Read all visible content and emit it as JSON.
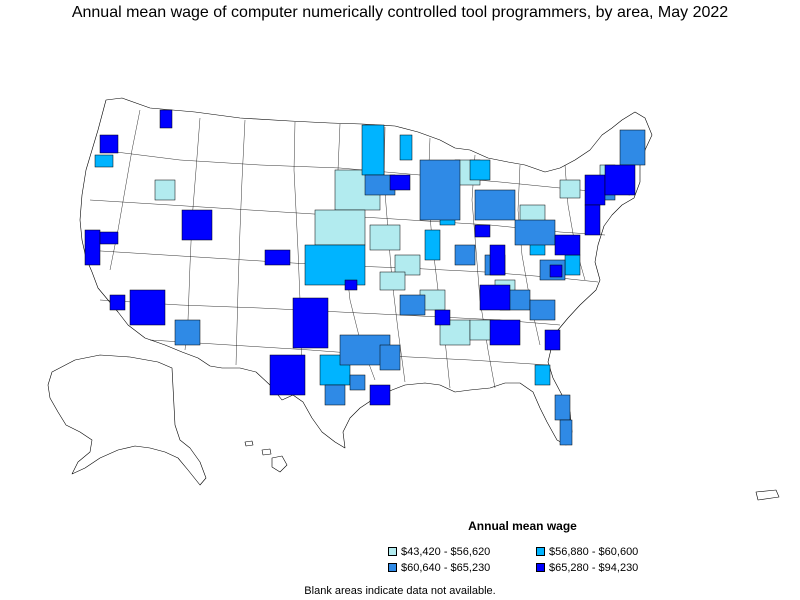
{
  "title": "Annual mean wage of computer numerically controlled tool programmers, by area, May 2022",
  "legend": {
    "title": "Annual mean wage",
    "items": [
      {
        "label": "$43,420 - $56,620",
        "color": "#b2ebef"
      },
      {
        "label": "$56,880 - $60,600",
        "color": "#00b4ff"
      },
      {
        "label": "$60,640 - $65,230",
        "color": "#2f8ae6"
      },
      {
        "label": "$65,280 - $94,230",
        "color": "#0000ff"
      }
    ],
    "no_data_color": "#ffffff"
  },
  "footnote": "Blank areas indicate data not available."
}
